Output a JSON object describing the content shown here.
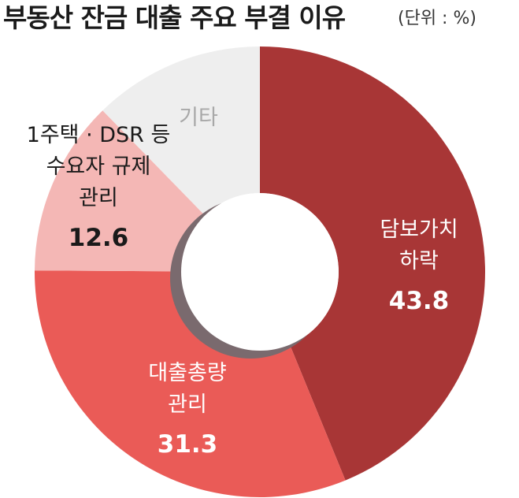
{
  "title": "부동산 잔금 대출 주요 부결 이유",
  "unit": "(단위 : %)",
  "colors": {
    "slice_1": "#a83636",
    "slice_2": "#ea5b57",
    "slice_3": "#f4b7b5",
    "slice_4": "#eeeeee",
    "hole_shadow": "#7a6a6e"
  },
  "chart_data": {
    "type": "pie",
    "donut": true,
    "title": "부동산 잔금 대출 주요 부결 이유",
    "unit": "(단위 : %)",
    "legend": "none",
    "slices": [
      {
        "label_lines": [
          "담보가치",
          "하락"
        ],
        "value": 43.8,
        "value_text": "43.8"
      },
      {
        "label_lines": [
          "대출총량",
          "관리"
        ],
        "value": 31.3,
        "value_text": "31.3"
      },
      {
        "label_lines": [
          "1주택 · DSR 등",
          "수요자 규제",
          "관리"
        ],
        "value": 12.6,
        "value_text": "12.6"
      },
      {
        "label_lines": [
          "기타"
        ],
        "value": 12.3,
        "value_text": ""
      }
    ]
  }
}
